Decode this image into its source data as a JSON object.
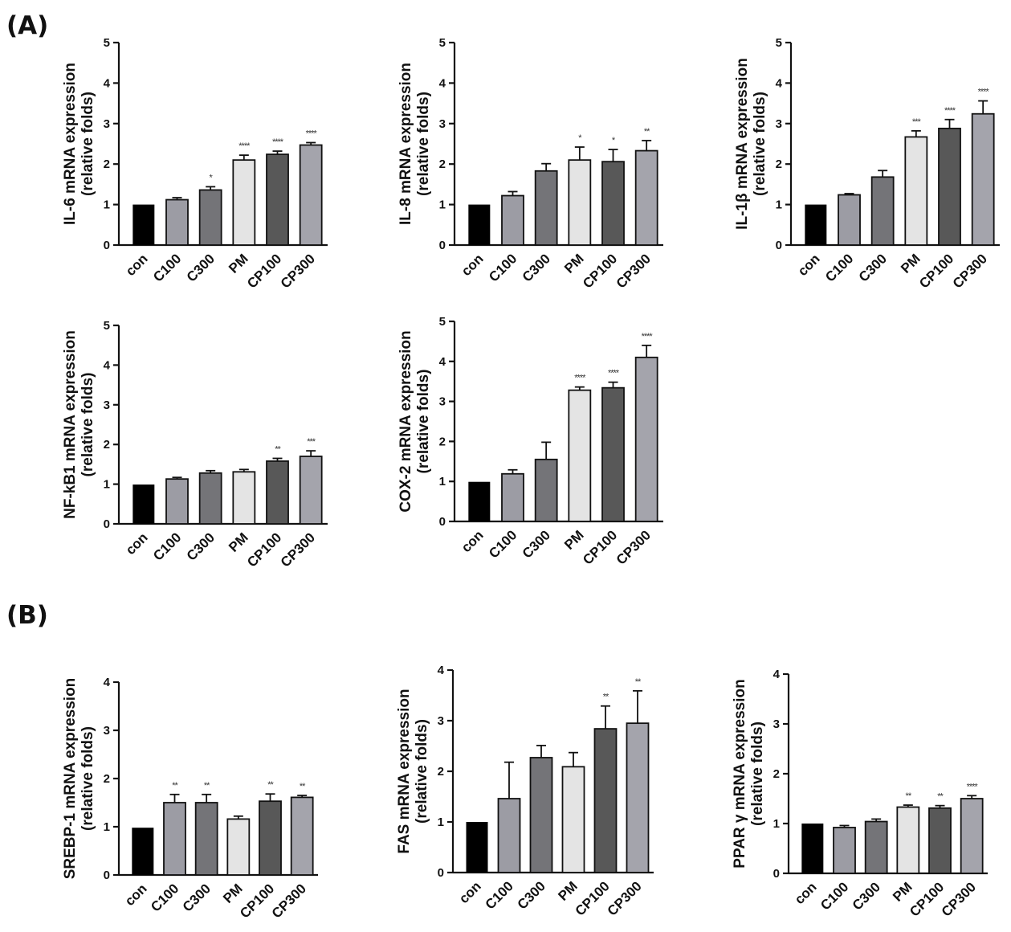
{
  "panels": {
    "a": "(A)",
    "b": "(B)"
  },
  "colors": {
    "con": "#000000",
    "C100": "#9c9ca4",
    "C300": "#747478",
    "PM": "#e4e4e4",
    "CP100": "#585858",
    "CP300": "#a4a4ac"
  },
  "chart_data": [
    {
      "type": "bar",
      "panel": "A",
      "ylabel": [
        "IL-6 mRNA expression",
        "(relative folds)"
      ],
      "categories": [
        "con",
        "C100",
        "C300",
        "PM",
        "CP100",
        "CP300"
      ],
      "values": [
        1.0,
        1.12,
        1.36,
        2.1,
        2.24,
        2.47
      ],
      "errors": [
        0,
        0.05,
        0.08,
        0.12,
        0.08,
        0.06
      ],
      "significance": [
        "",
        "",
        "*",
        "****",
        "****",
        "****"
      ],
      "ylim": [
        0,
        5
      ],
      "yticks": [
        "0",
        "1",
        "2",
        "3",
        "4",
        "5"
      ]
    },
    {
      "type": "bar",
      "panel": "A",
      "ylabel": [
        "IL-8 mRNA expression",
        "(relative folds)"
      ],
      "categories": [
        "con",
        "C100",
        "C300",
        "PM",
        "CP100",
        "CP300"
      ],
      "values": [
        1.0,
        1.22,
        1.83,
        2.1,
        2.06,
        2.33
      ],
      "errors": [
        0,
        0.1,
        0.18,
        0.32,
        0.3,
        0.25
      ],
      "significance": [
        "",
        "",
        "",
        "*",
        "*",
        "**"
      ],
      "ylim": [
        0,
        5
      ],
      "yticks": [
        "0",
        "1",
        "2",
        "3",
        "4",
        "5"
      ]
    },
    {
      "type": "bar",
      "panel": "A",
      "ylabel": [
        "IL-1β mRNA expression",
        "(relative folds)"
      ],
      "categories": [
        "con",
        "C100",
        "C300",
        "PM",
        "CP100",
        "CP300"
      ],
      "values": [
        1.0,
        1.24,
        1.68,
        2.67,
        2.88,
        3.24
      ],
      "errors": [
        0,
        0.03,
        0.16,
        0.15,
        0.22,
        0.32
      ],
      "significance": [
        "",
        "",
        "",
        "***",
        "****",
        "****"
      ],
      "ylim": [
        0,
        5
      ],
      "yticks": [
        "0",
        "1",
        "2",
        "3",
        "4",
        "5"
      ]
    },
    {
      "type": "bar",
      "panel": "A",
      "ylabel": [
        "NF-kB1 mRNA expression",
        "(relative folds)"
      ],
      "categories": [
        "con",
        "C100",
        "C300",
        "PM",
        "CP100",
        "CP300"
      ],
      "values": [
        0.99,
        1.13,
        1.28,
        1.31,
        1.58,
        1.7
      ],
      "errors": [
        0,
        0.04,
        0.06,
        0.06,
        0.07,
        0.14
      ],
      "significance": [
        "",
        "",
        "",
        "",
        "**",
        "***"
      ],
      "ylim": [
        0,
        5
      ],
      "yticks": [
        "0",
        "1",
        "2",
        "3",
        "4",
        "5"
      ]
    },
    {
      "type": "bar",
      "panel": "A",
      "ylabel": [
        "COX-2 mRNA expression",
        "(relative folds)"
      ],
      "categories": [
        "con",
        "C100",
        "C300",
        "PM",
        "CP100",
        "CP300"
      ],
      "values": [
        0.99,
        1.19,
        1.55,
        3.28,
        3.34,
        4.1
      ],
      "errors": [
        0,
        0.1,
        0.43,
        0.08,
        0.14,
        0.3
      ],
      "significance": [
        "",
        "",
        "",
        "****",
        "****",
        "****"
      ],
      "ylim": [
        0,
        5
      ],
      "yticks": [
        "0",
        "1",
        "2",
        "3",
        "4",
        "5"
      ]
    },
    {
      "type": "bar",
      "panel": "B",
      "ylabel": [
        "SREBP-1 mRNA expression",
        "(relative folds)"
      ],
      "categories": [
        "con",
        "C100",
        "C300",
        "PM",
        "CP100",
        "CP300"
      ],
      "values": [
        0.98,
        1.5,
        1.5,
        1.16,
        1.53,
        1.61
      ],
      "errors": [
        0,
        0.17,
        0.17,
        0.06,
        0.15,
        0.04
      ],
      "significance": [
        "",
        "**",
        "**",
        "",
        "**",
        "**"
      ],
      "ylim": [
        0,
        4
      ],
      "yticks": [
        "0",
        "1",
        "2",
        "3",
        "4"
      ]
    },
    {
      "type": "bar",
      "panel": "B",
      "ylabel": [
        "FAS mRNA expression",
        "(relative folds)"
      ],
      "categories": [
        "con",
        "C100",
        "C300",
        "PM",
        "CP100",
        "CP300"
      ],
      "values": [
        1.0,
        1.46,
        2.27,
        2.09,
        2.84,
        2.95
      ],
      "errors": [
        0,
        0.72,
        0.24,
        0.28,
        0.45,
        0.64
      ],
      "significance": [
        "",
        "",
        "",
        "",
        "**",
        "**"
      ],
      "ylim": [
        0,
        4
      ],
      "yticks": [
        "0",
        "1",
        "2",
        "3",
        "4"
      ]
    },
    {
      "type": "bar",
      "panel": "B",
      "ylabel": [
        "PPAR γ mRNA expression",
        "(relative folds)"
      ],
      "categories": [
        "con",
        "C100",
        "C300",
        "PM",
        "CP100",
        "CP300"
      ],
      "values": [
        1.0,
        0.92,
        1.04,
        1.33,
        1.31,
        1.5
      ],
      "errors": [
        0,
        0.04,
        0.05,
        0.04,
        0.05,
        0.06
      ],
      "significance": [
        "",
        "",
        "",
        "**",
        "**",
        "****"
      ],
      "ylim": [
        0,
        4
      ],
      "yticks": [
        "0",
        "1",
        "2",
        "3",
        "4"
      ]
    }
  ]
}
